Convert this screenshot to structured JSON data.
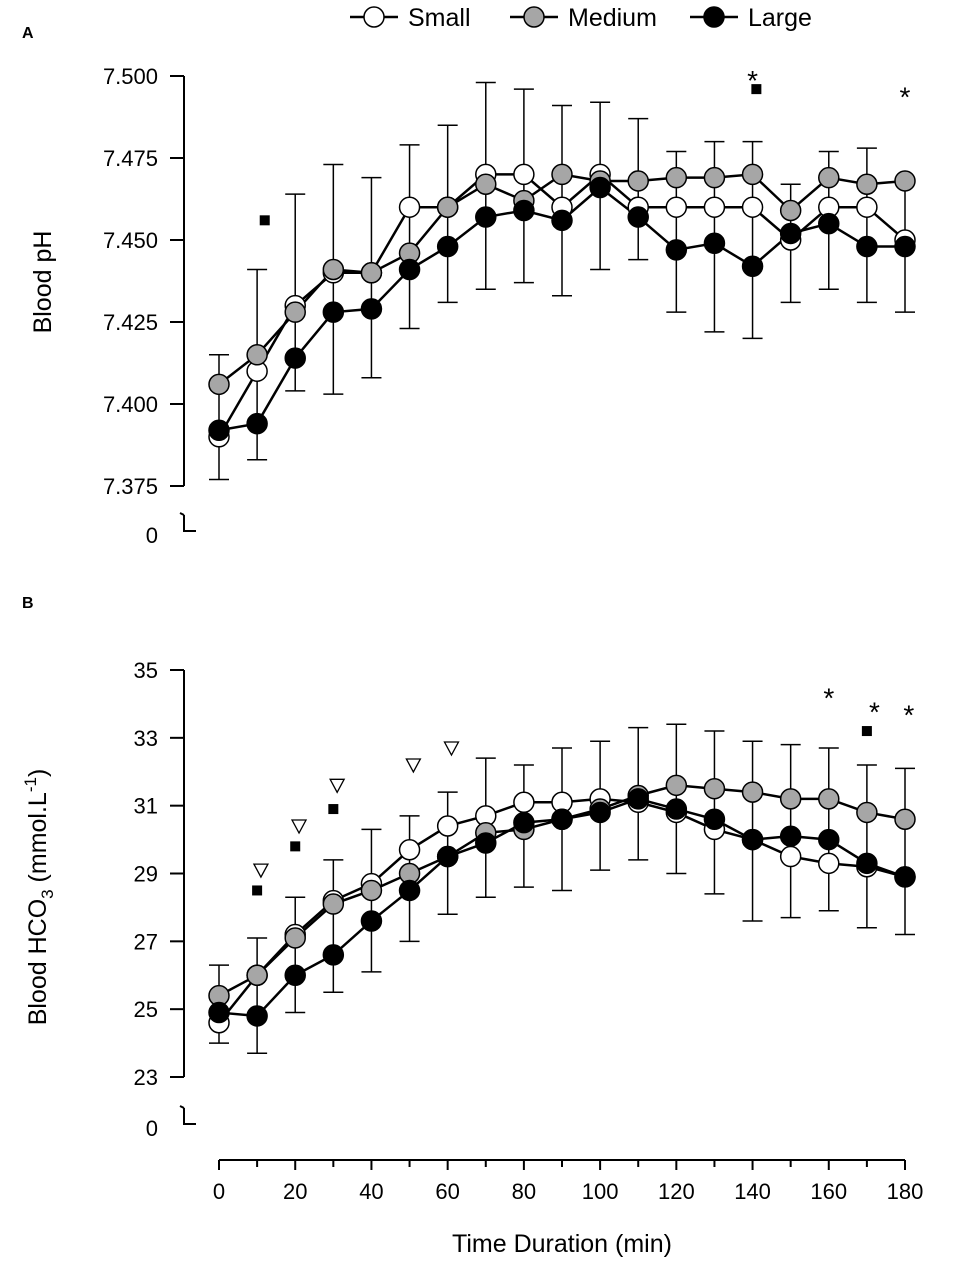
{
  "chart_data": [
    {
      "type": "line",
      "panel": "A",
      "ylabel": "Blood pH",
      "ylim": [
        7.375,
        7.5
      ],
      "yticks": [
        "7.375",
        "7.400",
        "7.425",
        "7.450",
        "7.475",
        "7.500"
      ],
      "ybreak_label": "0",
      "x": [
        0,
        10,
        20,
        30,
        40,
        50,
        60,
        70,
        80,
        90,
        100,
        110,
        120,
        130,
        140,
        150,
        160,
        170,
        180
      ],
      "series": [
        {
          "name": "Small",
          "fill": "#ffffff",
          "values": [
            7.39,
            7.41,
            7.43,
            7.44,
            7.44,
            7.46,
            7.46,
            7.47,
            7.47,
            7.46,
            7.47,
            7.46,
            7.46,
            7.46,
            7.46,
            7.45,
            7.46,
            7.46,
            7.45
          ]
        },
        {
          "name": "Medium",
          "fill": "#a6a6a6",
          "values": [
            7.406,
            7.415,
            7.428,
            7.441,
            7.44,
            7.446,
            7.46,
            7.467,
            7.462,
            7.47,
            7.468,
            7.468,
            7.469,
            7.469,
            7.47,
            7.459,
            7.469,
            7.467,
            7.468
          ]
        },
        {
          "name": "Large",
          "fill": "#000000",
          "values": [
            7.392,
            7.394,
            7.414,
            7.428,
            7.429,
            7.441,
            7.448,
            7.457,
            7.459,
            7.456,
            7.466,
            7.457,
            7.447,
            7.449,
            7.442,
            7.452,
            7.455,
            7.448,
            7.448
          ]
        }
      ],
      "error_tops": [
        7.415,
        7.441,
        7.464,
        7.473,
        7.469,
        7.479,
        7.485,
        7.498,
        7.496,
        7.491,
        7.492,
        7.487,
        7.477,
        7.48,
        7.48,
        7.467,
        7.477,
        7.478,
        7.468
      ],
      "error_bottoms": [
        7.377,
        7.383,
        7.404,
        7.403,
        7.408,
        7.423,
        7.431,
        7.435,
        7.437,
        7.433,
        7.441,
        7.444,
        7.428,
        7.422,
        7.42,
        7.431,
        7.435,
        7.431,
        7.428
      ],
      "annotations": [
        {
          "x": 140,
          "y": 7.5,
          "text": "*"
        },
        {
          "x": 180,
          "y": 7.495,
          "text": "*"
        }
      ],
      "square_markers": [
        {
          "x": 12,
          "y": 7.456
        },
        {
          "x": 141,
          "y": 7.496
        }
      ],
      "triangle_markers": []
    },
    {
      "type": "line",
      "panel": "B",
      "ylabel_main": "Blood HCO",
      "ylabel_sub": "3",
      "ylabel_unit": " (mmol.L",
      "ylabel_sup": "-1",
      "ylabel_close": ")",
      "ylim": [
        23,
        35
      ],
      "yticks": [
        "23",
        "25",
        "27",
        "29",
        "31",
        "33",
        "35"
      ],
      "ybreak_label": "0",
      "x": [
        0,
        10,
        20,
        30,
        40,
        50,
        60,
        70,
        80,
        90,
        100,
        110,
        120,
        130,
        140,
        150,
        160,
        170,
        180
      ],
      "series": [
        {
          "name": "Small",
          "fill": "#ffffff",
          "values": [
            24.6,
            26.0,
            27.2,
            28.2,
            28.7,
            29.7,
            30.4,
            30.7,
            31.1,
            31.1,
            31.2,
            31.1,
            30.8,
            30.3,
            30.0,
            29.5,
            29.3,
            29.2,
            28.9
          ]
        },
        {
          "name": "Medium",
          "fill": "#a6a6a6",
          "values": [
            25.4,
            26.0,
            27.1,
            28.1,
            28.5,
            29.0,
            29.5,
            30.2,
            30.3,
            30.6,
            30.9,
            31.3,
            31.6,
            31.5,
            31.4,
            31.2,
            31.2,
            30.8,
            30.6
          ]
        },
        {
          "name": "Large",
          "fill": "#000000",
          "values": [
            24.9,
            24.8,
            26.0,
            26.6,
            27.6,
            28.5,
            29.5,
            29.9,
            30.5,
            30.6,
            30.8,
            31.2,
            30.9,
            30.6,
            30.0,
            30.1,
            30.0,
            29.3,
            28.9
          ]
        }
      ],
      "error_tops": [
        26.3,
        27.1,
        28.3,
        29.4,
        30.3,
        30.7,
        31.4,
        32.4,
        32.2,
        32.7,
        32.9,
        33.3,
        33.4,
        33.2,
        32.9,
        32.8,
        32.7,
        32.2,
        32.1
      ],
      "error_bottoms": [
        24.0,
        23.7,
        24.9,
        25.5,
        26.1,
        27.0,
        27.8,
        28.3,
        28.6,
        28.5,
        29.1,
        29.4,
        29.0,
        28.4,
        27.6,
        27.7,
        27.9,
        27.4,
        27.2
      ],
      "annotations": [
        {
          "x": 160,
          "y": 34.3,
          "text": "*"
        },
        {
          "x": 172,
          "y": 33.9,
          "text": "*"
        },
        {
          "x": 181,
          "y": 33.8,
          "text": "*"
        }
      ],
      "square_markers": [
        {
          "x": 10,
          "y": 28.5
        },
        {
          "x": 20,
          "y": 29.8
        },
        {
          "x": 30,
          "y": 30.9
        },
        {
          "x": 170,
          "y": 33.2
        }
      ],
      "triangle_markers": [
        {
          "x": 11,
          "y": 29.1
        },
        {
          "x": 21,
          "y": 30.4
        },
        {
          "x": 31,
          "y": 31.6
        },
        {
          "x": 51,
          "y": 32.2
        },
        {
          "x": 61,
          "y": 32.7
        }
      ]
    }
  ],
  "xaxis": {
    "label": "Time Duration (min)",
    "ticks": [
      "0",
      "20",
      "40",
      "60",
      "80",
      "100",
      "120",
      "140",
      "160",
      "180"
    ],
    "xlim": [
      0,
      180
    ]
  },
  "legend": {
    "placement": "top-center",
    "items": [
      "Small",
      "Medium",
      "Large"
    ]
  },
  "panel_labels": [
    "A",
    "B"
  ],
  "colors": {
    "small": "#ffffff",
    "medium": "#a6a6a6",
    "large": "#000000",
    "axis": "#000000"
  }
}
